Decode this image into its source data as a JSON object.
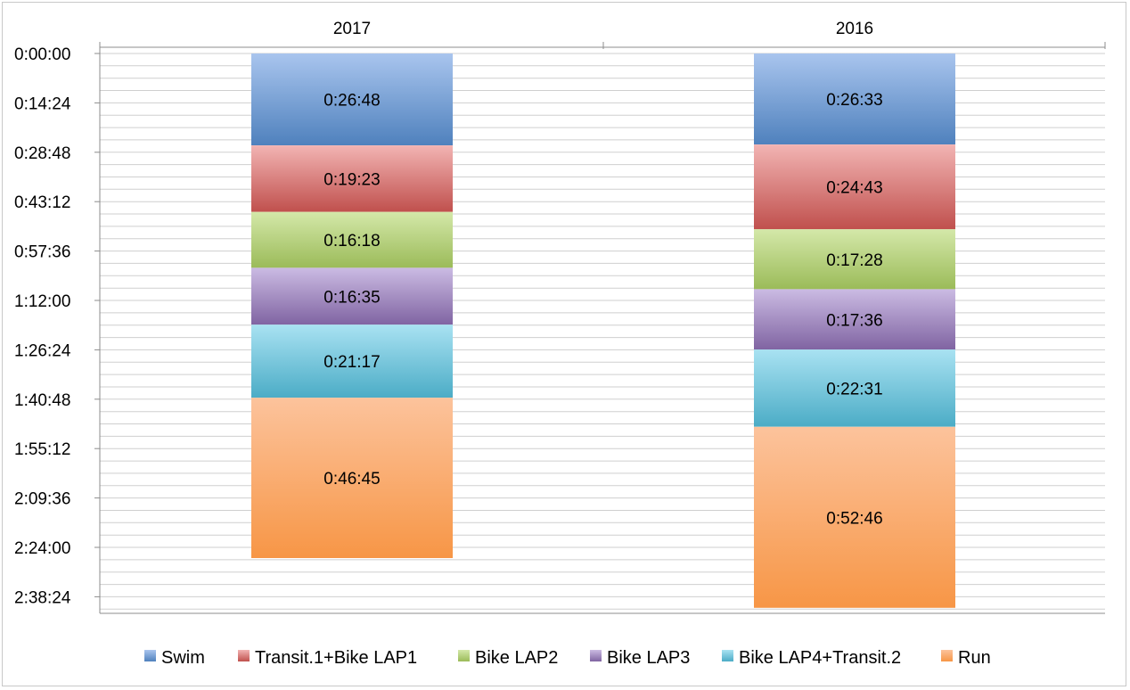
{
  "chart_data": {
    "type": "bar",
    "orientation": "vertical-stacked",
    "y_axis_inverted": true,
    "categories": [
      "2017",
      "2016"
    ],
    "y_ticks": [
      "0:00:00",
      "0:14:24",
      "0:28:48",
      "0:43:12",
      "0:57:36",
      "1:12:00",
      "1:26:24",
      "1:40:48",
      "1:55:12",
      "2:09:36",
      "2:24:00",
      "2:38:24"
    ],
    "ylim_seconds": [
      0,
      9504
    ],
    "series": [
      {
        "name": "Swim",
        "color": "#4f81bd",
        "color_light": "#a9c5ee",
        "values": [
          "0:26:48",
          "0:26:33"
        ]
      },
      {
        "name": "Transit.1+Bike LAP1",
        "color": "#c0504d",
        "color_light": "#f2b4b3",
        "values": [
          "0:19:23",
          "0:24:43"
        ]
      },
      {
        "name": "Bike LAP2",
        "color": "#9bbb59",
        "color_light": "#d4e8a9",
        "values": [
          "0:16:18",
          "0:17:28"
        ]
      },
      {
        "name": "Bike LAP3",
        "color": "#8064a2",
        "color_light": "#cbbbe3",
        "values": [
          "0:16:35",
          "0:17:36"
        ]
      },
      {
        "name": "Bike LAP4+Transit.2",
        "color": "#4bacc6",
        "color_light": "#a9e2f2",
        "values": [
          "0:21:17",
          "0:22:31"
        ]
      },
      {
        "name": "Run",
        "color": "#f79646",
        "color_light": "#fcc39c",
        "values": [
          "0:46:45",
          "0:52:46"
        ]
      }
    ],
    "grid": true,
    "legend_position": "bottom"
  }
}
